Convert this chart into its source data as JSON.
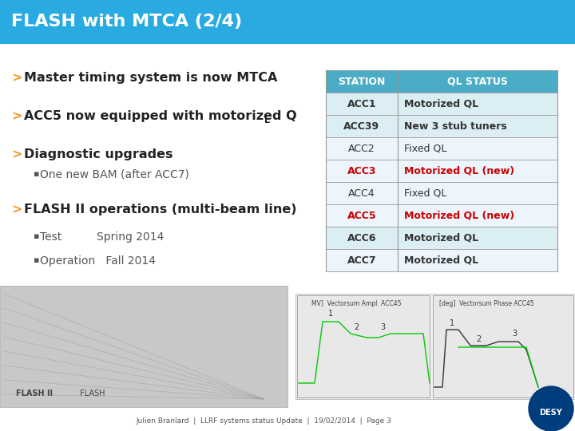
{
  "title": "FLASH with MTCA (2/4)",
  "title_bg": "#29ABE2",
  "title_color": "white",
  "title_fontsize": 16,
  "bg_color": "white",
  "bullet_color": "#F7941D",
  "bullet_points": [
    {
      "text": "Master timing system is now MTCA",
      "level": 0,
      "bold": true
    },
    {
      "text": "ACC5 now equipped with motorized Q",
      "level": 0,
      "bold": true,
      "subscript": "L"
    },
    {
      "text": "Diagnostic upgrades",
      "level": 0,
      "bold": true
    },
    {
      "text": "One new BAM (after ACC7)",
      "level": 1,
      "bold": false
    },
    {
      "text": "FLASH II operations (multi-beam line)",
      "level": 0,
      "bold": true
    },
    {
      "text": "Test          Spring 2014",
      "level": 1,
      "bold": false
    },
    {
      "text": "Operation   Fall 2014",
      "level": 1,
      "bold": false
    }
  ],
  "table_header": [
    "STATION",
    "QL STATUS"
  ],
  "table_header_bg": "#4BACC6",
  "table_header_color": "white",
  "table_rows": [
    {
      "station": "ACC1",
      "status": "Motorized QL",
      "bold_station": true,
      "bold_status": true,
      "red": false,
      "row_bg": "#DAEEF3"
    },
    {
      "station": "ACC39",
      "status": "New 3 stub tuners",
      "bold_station": true,
      "bold_status": true,
      "red": false,
      "row_bg": "#DAEEF3"
    },
    {
      "station": "ACC2",
      "status": "Fixed QL",
      "bold_station": false,
      "bold_status": false,
      "red": false,
      "row_bg": "#EBF5FB"
    },
    {
      "station": "ACC3",
      "status": "Motorized QL (new)",
      "bold_station": true,
      "bold_status": true,
      "red": true,
      "row_bg": "#EBF5FB"
    },
    {
      "station": "ACC4",
      "status": "Fixed QL",
      "bold_station": false,
      "bold_status": false,
      "red": false,
      "row_bg": "#EBF5FB"
    },
    {
      "station": "ACC5",
      "status": "Motorized QL (new)",
      "bold_station": true,
      "bold_status": true,
      "red": true,
      "row_bg": "#EBF5FB"
    },
    {
      "station": "ACC6",
      "status": "Motorized QL",
      "bold_station": true,
      "bold_status": true,
      "red": false,
      "row_bg": "#DAEEF3"
    },
    {
      "station": "ACC7",
      "status": "Motorized QL",
      "bold_station": true,
      "bold_status": true,
      "red": false,
      "row_bg": "#EBF5FB"
    }
  ],
  "footer_text": "Julien Branlard  |  LLRF systems status Update  |  19/02/2014  |  Page 3",
  "desy_logo_color": "#003D7C"
}
